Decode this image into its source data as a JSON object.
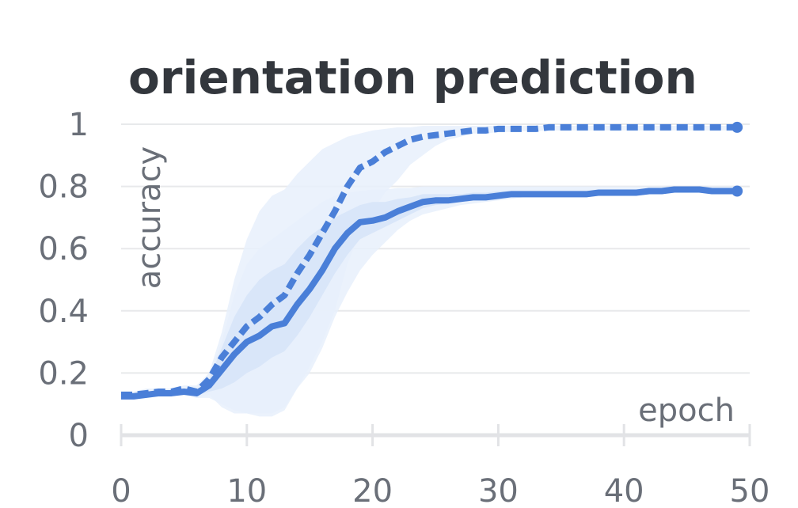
{
  "chart_data": {
    "type": "line",
    "title": "orientation prediction",
    "xlabel": "epoch",
    "ylabel": "accuracy",
    "xlim": [
      0,
      50
    ],
    "ylim": [
      0,
      1
    ],
    "xticks": [
      "0",
      "10",
      "20",
      "30",
      "40",
      "50"
    ],
    "yticks": [
      "0",
      "0.2",
      "0.4",
      "0.6",
      "0.8",
      "1"
    ],
    "grid": true,
    "colors": {
      "series": "#4a7fd8",
      "band_outer": "#e8f0fc",
      "band_inner": "#d6e4f8"
    },
    "series": [
      {
        "style": "dashed",
        "x": [
          0,
          1,
          2,
          3,
          4,
          5,
          6,
          7,
          8,
          9,
          10,
          11,
          12,
          13,
          14,
          15,
          16,
          17,
          18,
          19,
          20,
          21,
          22,
          23,
          24,
          25,
          26,
          27,
          28,
          29,
          30,
          31,
          32,
          33,
          34,
          35,
          36,
          37,
          38,
          39,
          40,
          41,
          42,
          43,
          44,
          45,
          46,
          47,
          48,
          49
        ],
        "y": [
          0.13,
          0.13,
          0.135,
          0.14,
          0.14,
          0.15,
          0.14,
          0.18,
          0.25,
          0.3,
          0.35,
          0.38,
          0.42,
          0.45,
          0.52,
          0.58,
          0.65,
          0.72,
          0.8,
          0.86,
          0.88,
          0.91,
          0.93,
          0.95,
          0.96,
          0.965,
          0.97,
          0.975,
          0.98,
          0.98,
          0.985,
          0.985,
          0.985,
          0.985,
          0.99,
          0.99,
          0.99,
          0.99,
          0.99,
          0.99,
          0.99,
          0.99,
          0.99,
          0.99,
          0.99,
          0.99,
          0.99,
          0.99,
          0.99,
          0.99
        ],
        "band_outer": {
          "lower": [
            0.12,
            0.12,
            0.12,
            0.13,
            0.13,
            0.14,
            0.12,
            0.13,
            0.09,
            0.07,
            0.07,
            0.06,
            0.06,
            0.08,
            0.15,
            0.22,
            0.3,
            0.4,
            0.55,
            0.65,
            0.72,
            0.78,
            0.82,
            0.87,
            0.9,
            0.93,
            0.95,
            0.96,
            0.97,
            0.97,
            0.975,
            0.975,
            0.978,
            0.978,
            0.98,
            0.98,
            0.98,
            0.98,
            0.98,
            0.98,
            0.98,
            0.98,
            0.98,
            0.98,
            0.98,
            0.98,
            0.98,
            0.98,
            0.98,
            0.98
          ],
          "upper": [
            0.14,
            0.14,
            0.15,
            0.15,
            0.15,
            0.16,
            0.16,
            0.2,
            0.33,
            0.5,
            0.63,
            0.72,
            0.77,
            0.79,
            0.84,
            0.88,
            0.92,
            0.94,
            0.96,
            0.97,
            0.98,
            0.985,
            0.99,
            0.99,
            0.995,
            0.995,
            0.995,
            0.995,
            0.995,
            0.995,
            0.995,
            0.995,
            0.995,
            0.995,
            0.995,
            0.995,
            0.995,
            0.995,
            0.995,
            0.995,
            0.995,
            0.995,
            0.995,
            0.995,
            0.995,
            0.995,
            0.995,
            0.995,
            0.995,
            0.995
          ]
        }
      },
      {
        "style": "solid",
        "x": [
          0,
          1,
          2,
          3,
          4,
          5,
          6,
          7,
          8,
          9,
          10,
          11,
          12,
          13,
          14,
          15,
          16,
          17,
          18,
          19,
          20,
          21,
          22,
          23,
          24,
          25,
          26,
          27,
          28,
          29,
          30,
          31,
          32,
          33,
          34,
          35,
          36,
          37,
          38,
          39,
          40,
          41,
          42,
          43,
          44,
          45,
          46,
          47,
          48,
          49
        ],
        "y": [
          0.125,
          0.125,
          0.13,
          0.135,
          0.135,
          0.14,
          0.135,
          0.16,
          0.21,
          0.26,
          0.3,
          0.32,
          0.35,
          0.36,
          0.42,
          0.47,
          0.53,
          0.6,
          0.65,
          0.685,
          0.69,
          0.7,
          0.72,
          0.735,
          0.75,
          0.755,
          0.755,
          0.76,
          0.765,
          0.765,
          0.77,
          0.775,
          0.775,
          0.775,
          0.775,
          0.775,
          0.775,
          0.775,
          0.78,
          0.78,
          0.78,
          0.78,
          0.785,
          0.785,
          0.79,
          0.79,
          0.79,
          0.785,
          0.785,
          0.785
        ],
        "band_outer": {
          "lower": [
            0.12,
            0.12,
            0.12,
            0.13,
            0.13,
            0.13,
            0.12,
            0.12,
            0.1,
            0.08,
            0.07,
            0.07,
            0.07,
            0.09,
            0.15,
            0.2,
            0.28,
            0.38,
            0.46,
            0.53,
            0.58,
            0.62,
            0.66,
            0.69,
            0.71,
            0.72,
            0.73,
            0.74,
            0.745,
            0.75,
            0.755,
            0.76,
            0.765,
            0.765,
            0.765,
            0.765,
            0.765,
            0.765,
            0.77,
            0.77,
            0.77,
            0.77,
            0.775,
            0.775,
            0.78,
            0.78,
            0.78,
            0.775,
            0.775,
            0.775
          ],
          "upper": [
            0.13,
            0.13,
            0.14,
            0.14,
            0.14,
            0.15,
            0.15,
            0.19,
            0.3,
            0.45,
            0.55,
            0.6,
            0.63,
            0.66,
            0.69,
            0.72,
            0.75,
            0.77,
            0.78,
            0.785,
            0.79,
            0.79,
            0.795,
            0.795,
            0.8,
            0.8,
            0.8,
            0.8,
            0.8,
            0.8,
            0.8,
            0.8,
            0.8,
            0.8,
            0.8,
            0.8,
            0.8,
            0.8,
            0.8,
            0.8,
            0.8,
            0.8,
            0.8,
            0.8,
            0.8,
            0.8,
            0.8,
            0.8,
            0.8,
            0.8
          ]
        },
        "band_inner": {
          "lower": [
            0.122,
            0.122,
            0.125,
            0.132,
            0.132,
            0.135,
            0.128,
            0.14,
            0.15,
            0.17,
            0.2,
            0.22,
            0.25,
            0.27,
            0.32,
            0.38,
            0.45,
            0.52,
            0.58,
            0.63,
            0.65,
            0.67,
            0.69,
            0.71,
            0.73,
            0.74,
            0.745,
            0.75,
            0.755,
            0.755,
            0.76,
            0.765,
            0.768,
            0.768,
            0.768,
            0.768,
            0.768,
            0.768,
            0.773,
            0.773,
            0.773,
            0.773,
            0.778,
            0.778,
            0.783,
            0.783,
            0.783,
            0.778,
            0.778,
            0.778
          ],
          "upper": [
            0.128,
            0.128,
            0.135,
            0.138,
            0.138,
            0.145,
            0.143,
            0.18,
            0.28,
            0.38,
            0.45,
            0.5,
            0.53,
            0.55,
            0.6,
            0.64,
            0.67,
            0.7,
            0.72,
            0.74,
            0.75,
            0.75,
            0.76,
            0.765,
            0.775,
            0.775,
            0.775,
            0.775,
            0.78,
            0.78,
            0.785,
            0.785,
            0.785,
            0.785,
            0.785,
            0.785,
            0.785,
            0.785,
            0.79,
            0.79,
            0.79,
            0.79,
            0.795,
            0.795,
            0.797,
            0.797,
            0.797,
            0.792,
            0.792,
            0.792
          ]
        }
      }
    ]
  }
}
